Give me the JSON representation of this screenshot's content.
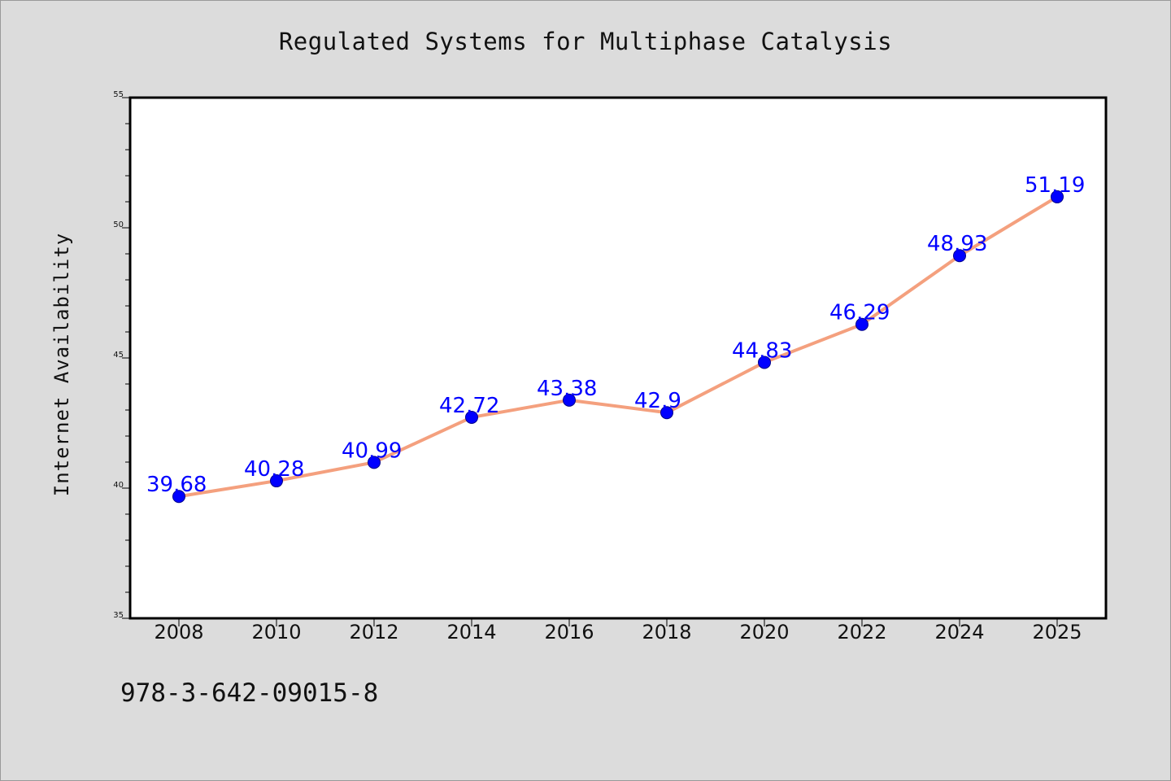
{
  "colors": {
    "background": "#dcdcdc",
    "plot_background": "#ffffff",
    "line": "#f4a07e",
    "marker": "#0000ff",
    "data_label": "#0000ff"
  },
  "footnote": "978-3-642-09015-8",
  "chart_data": {
    "type": "line",
    "title": "Regulated Systems for Multiphase Catalysis",
    "xlabel": "",
    "ylabel": "Internet Availability",
    "categories": [
      "2008",
      "2010",
      "2012",
      "2014",
      "2016",
      "2018",
      "2020",
      "2022",
      "2024",
      "2025"
    ],
    "series": [
      {
        "values": [
          39.68,
          40.28,
          40.99,
          42.72,
          43.38,
          42.9,
          44.83,
          46.29,
          48.93,
          51.19
        ],
        "labels": [
          "39.68",
          "40.28",
          "40.99",
          "42.72",
          "43.38",
          "42.9",
          "44.83",
          "46.29",
          "48.93",
          "51.19"
        ]
      }
    ],
    "ylim": [
      35,
      55
    ],
    "yticks": [
      "35",
      "40",
      "45",
      "50",
      "55"
    ],
    "grid": false,
    "legend": "none"
  }
}
